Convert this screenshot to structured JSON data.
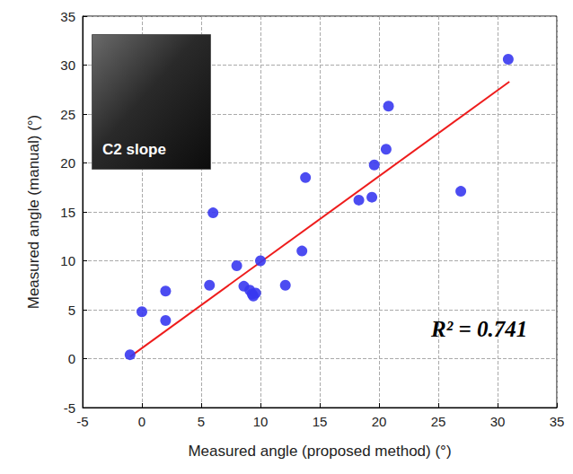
{
  "chart_data": {
    "type": "scatter",
    "x_label": "Measured angle (proposed method) (°)",
    "y_label": "Measured angle (manual) (°)",
    "xlim": [
      -5,
      35
    ],
    "xticks": [
      -5,
      0,
      5,
      10,
      15,
      20,
      25,
      30,
      35
    ],
    "ylim": [
      -5,
      35
    ],
    "yticks": [
      -5,
      0,
      5,
      10,
      15,
      20,
      25,
      30,
      35
    ],
    "grid": true,
    "annotations": [
      "C2 slope",
      "R² = 0.741"
    ],
    "series": [
      {
        "type": "scatter",
        "color": "#3838f0",
        "marker": "circle",
        "x": [
          -1,
          0,
          2,
          2,
          5.7,
          6,
          8,
          8.6,
          9.1,
          9.3,
          9.4,
          9.6,
          10,
          12.1,
          13.5,
          13.8,
          18.3,
          19.4,
          19.6,
          20.6,
          20.8,
          26.9,
          30.9
        ],
        "values": [
          0.4,
          4.8,
          3.9,
          6.9,
          7.5,
          14.9,
          9.5,
          7.4,
          7.0,
          6.6,
          6.4,
          6.7,
          10,
          7.5,
          11,
          18.5,
          16.2,
          16.5,
          19.8,
          21.4,
          25.8,
          17.1,
          30.6
        ]
      },
      {
        "type": "line",
        "color": "#ee1c1c",
        "line_style": "solid",
        "x": [
          -1,
          31
        ],
        "values": [
          0.2,
          28.3
        ]
      }
    ]
  }
}
